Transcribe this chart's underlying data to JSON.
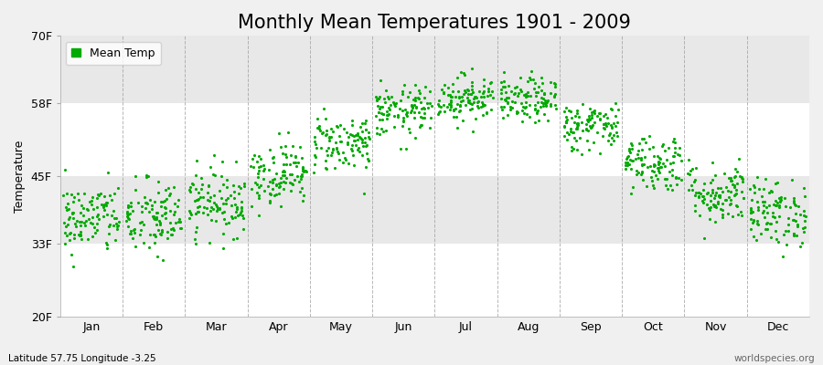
{
  "title": "Monthly Mean Temperatures 1901 - 2009",
  "ylabel": "Temperature",
  "xlabel_bottom": "Latitude 57.75 Longitude -3.25",
  "watermark": "worldspecies.org",
  "legend_label": "Mean Temp",
  "months": [
    "Jan",
    "Feb",
    "Mar",
    "Apr",
    "May",
    "Jun",
    "Jul",
    "Aug",
    "Sep",
    "Oct",
    "Nov",
    "Dec"
  ],
  "yticks": [
    20,
    33,
    45,
    58,
    70
  ],
  "ytick_labels": [
    "20F",
    "33F",
    "45F",
    "58F",
    "70F"
  ],
  "ylim": [
    20,
    70
  ],
  "dot_color": "#00aa00",
  "bg_color_light": "#f0f0f0",
  "bg_color_dark": "#e0e0e0",
  "bg_outer": "#f0f0f0",
  "grid_color": "#999999",
  "n_years": 109,
  "monthly_mean_F": [
    37.5,
    37.5,
    40.5,
    45.5,
    51.0,
    56.5,
    59.0,
    58.5,
    54.0,
    47.5,
    42.0,
    38.5
  ],
  "monthly_std_F": [
    3.2,
    3.5,
    3.0,
    2.8,
    2.6,
    2.3,
    2.1,
    2.0,
    2.2,
    2.6,
    2.8,
    3.0
  ],
  "title_fontsize": 15,
  "axis_fontsize": 9,
  "legend_fontsize": 9,
  "dot_size": 5,
  "random_seed": 42
}
